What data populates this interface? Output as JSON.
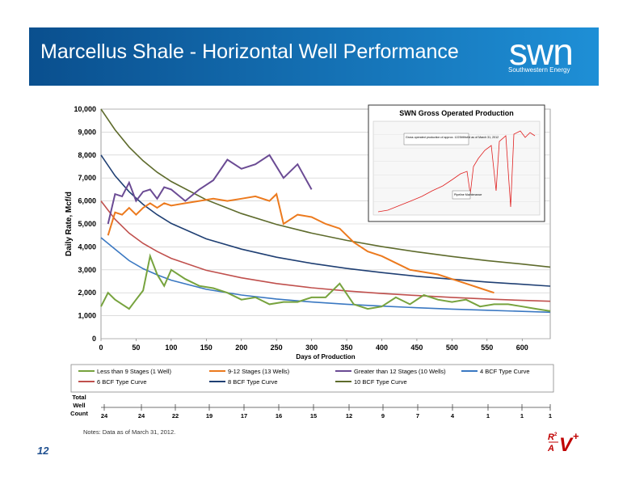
{
  "header": {
    "title": "Marcellus Shale - Horizontal Well Performance",
    "logo_text": "swn",
    "logo_subtext": "Southwestern Energy",
    "banner_color_left": "#0a4f8e",
    "banner_color_right": "#1e8fd6"
  },
  "page_number": "12",
  "notes": "Notes:   Data as of March 31, 2012.",
  "footer_logo": "R²/A V+",
  "chart_data": {
    "type": "line",
    "xlabel": "Days of Production",
    "ylabel": "Daily Rate, Mcf/d",
    "xlim": [
      0,
      640
    ],
    "ylim": [
      0,
      10000
    ],
    "x_ticks": [
      0,
      50,
      100,
      150,
      200,
      250,
      300,
      350,
      400,
      450,
      500,
      550,
      600
    ],
    "y_ticks": [
      0,
      1000,
      2000,
      3000,
      4000,
      5000,
      6000,
      7000,
      8000,
      9000,
      10000
    ],
    "y_tick_labels": [
      "0",
      "1,000",
      "2,000",
      "3,000",
      "4,000",
      "5,000",
      "6,000",
      "7,000",
      "8,000",
      "9,000",
      "10,000"
    ],
    "grid": true,
    "series": [
      {
        "name": "Less than 9 Stages (1 Well)",
        "color": "#77a33e",
        "x": [
          0,
          10,
          20,
          30,
          40,
          50,
          60,
          70,
          80,
          90,
          100,
          120,
          140,
          160,
          180,
          200,
          220,
          240,
          260,
          280,
          300,
          320,
          340,
          360,
          380,
          400,
          420,
          440,
          460,
          480,
          500,
          520,
          540,
          560,
          580,
          600,
          620,
          640
        ],
        "y": [
          1400,
          2000,
          1700,
          1500,
          1300,
          1700,
          2100,
          3600,
          2800,
          2300,
          3000,
          2600,
          2300,
          2200,
          2000,
          1700,
          1800,
          1500,
          1600,
          1600,
          1800,
          1800,
          2400,
          1500,
          1300,
          1400,
          1800,
          1500,
          1900,
          1700,
          1600,
          1700,
          1400,
          1500,
          1500,
          1400,
          1300,
          1200
        ]
      },
      {
        "name": "9-12 Stages (13 Wells)",
        "color": "#ec7a1e",
        "x": [
          10,
          20,
          30,
          40,
          50,
          60,
          70,
          80,
          90,
          100,
          120,
          140,
          160,
          180,
          200,
          220,
          240,
          250,
          260,
          280,
          300,
          320,
          340,
          360,
          380,
          400,
          420,
          440,
          460,
          480,
          500,
          520,
          540,
          560
        ],
        "y": [
          4500,
          5500,
          5400,
          5700,
          5400,
          5700,
          5900,
          5700,
          5900,
          5800,
          5900,
          6000,
          6100,
          6000,
          6100,
          6200,
          6000,
          6300,
          5000,
          5400,
          5300,
          5000,
          4800,
          4200,
          3800,
          3600,
          3300,
          3000,
          2900,
          2800,
          2600,
          2400,
          2200,
          2000
        ]
      },
      {
        "name": "Greater than 12 Stages (10 Wells)",
        "color": "#6b4b94",
        "x": [
          10,
          20,
          30,
          40,
          50,
          60,
          70,
          80,
          90,
          100,
          120,
          140,
          160,
          180,
          200,
          220,
          240,
          260,
          280,
          300
        ],
        "y": [
          5000,
          6300,
          6200,
          6800,
          6000,
          6400,
          6500,
          6100,
          6600,
          6500,
          6000,
          6500,
          6900,
          7800,
          7400,
          7600,
          8000,
          7000,
          7600,
          6500
        ]
      },
      {
        "name": "4 BCF Type Curve",
        "color": "#3a78c2",
        "x": [
          0,
          20,
          40,
          60,
          80,
          100,
          150,
          200,
          250,
          300,
          350,
          400,
          450,
          500,
          550,
          600,
          640
        ],
        "y": [
          4400,
          3900,
          3400,
          3050,
          2780,
          2550,
          2150,
          1900,
          1730,
          1600,
          1500,
          1420,
          1350,
          1290,
          1240,
          1190,
          1150
        ]
      },
      {
        "name": "6 BCF Type Curve",
        "color": "#c0504d",
        "x": [
          0,
          20,
          40,
          60,
          80,
          100,
          150,
          200,
          250,
          300,
          350,
          400,
          450,
          500,
          550,
          600,
          640
        ],
        "y": [
          6000,
          5200,
          4600,
          4150,
          3800,
          3500,
          2980,
          2650,
          2400,
          2220,
          2080,
          1970,
          1880,
          1800,
          1730,
          1670,
          1630
        ]
      },
      {
        "name": "8 BCF Type Curve",
        "color": "#1f3f73",
        "x": [
          0,
          20,
          40,
          60,
          80,
          100,
          150,
          200,
          250,
          300,
          350,
          400,
          450,
          500,
          550,
          600,
          640
        ],
        "y": [
          8000,
          7100,
          6400,
          5850,
          5400,
          5020,
          4350,
          3900,
          3550,
          3280,
          3060,
          2880,
          2720,
          2590,
          2470,
          2370,
          2290
        ]
      },
      {
        "name": "10 BCF Type Curve",
        "color": "#5e6b2c",
        "x": [
          0,
          20,
          40,
          60,
          80,
          100,
          150,
          200,
          250,
          300,
          350,
          400,
          450,
          500,
          550,
          600,
          640
        ],
        "y": [
          10000,
          9100,
          8350,
          7750,
          7250,
          6850,
          6050,
          5450,
          4980,
          4600,
          4280,
          4010,
          3780,
          3580,
          3400,
          3250,
          3120
        ]
      }
    ],
    "legend_placement": "bottom",
    "well_count": {
      "label": "Total Well Count",
      "days": [
        0,
        50,
        100,
        150,
        200,
        250,
        300,
        350,
        400,
        450,
        500,
        550,
        600,
        650
      ],
      "counts": [
        "24",
        "24",
        "22",
        "19",
        "17",
        "16",
        "15",
        "12",
        "9",
        "7",
        "4",
        "1",
        "1",
        "1"
      ]
    }
  },
  "inset": {
    "title": "SWN Gross Operated Production",
    "annotation": "Gross operated production of approx. 1223MMcf/d as of March 31, 2012",
    "callout": "Pipeline Maintenance",
    "line_color": "#e02020"
  }
}
